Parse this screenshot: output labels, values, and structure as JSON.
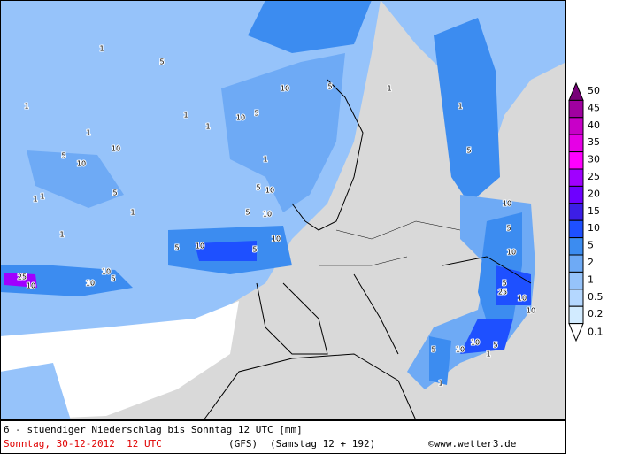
{
  "legend": {
    "levels": [
      {
        "value": 50,
        "color": "#780078"
      },
      {
        "value": 45,
        "color": "#a000a0"
      },
      {
        "value": 40,
        "color": "#c800c8"
      },
      {
        "value": 35,
        "color": "#e600e6"
      },
      {
        "value": 30,
        "color": "#ff00ff"
      },
      {
        "value": 25,
        "color": "#a000ff"
      },
      {
        "value": 20,
        "color": "#6e00ff"
      },
      {
        "value": 15,
        "color": "#3c1ee6"
      },
      {
        "value": 10,
        "color": "#1e50ff"
      },
      {
        "value": 5,
        "color": "#3c8cf0"
      },
      {
        "value": 2,
        "color": "#6eaaf5"
      },
      {
        "value": 1,
        "color": "#96c3fa"
      },
      {
        "value": 0.5,
        "color": "#b4d7ff"
      },
      {
        "value": 0.2,
        "color": "#d2ebff"
      },
      {
        "value": 0.1,
        "color": "#ffffff"
      }
    ]
  },
  "map_labels": [
    1,
    1,
    5,
    1,
    1,
    10,
    5,
    1,
    1,
    10,
    10,
    5,
    1,
    5,
    10,
    1,
    5,
    10,
    5,
    1,
    1,
    5,
    10,
    5,
    1,
    10,
    5,
    10,
    25,
    10,
    10,
    10,
    5,
    1,
    1,
    10,
    5,
    10,
    5,
    10,
    25,
    10,
    5,
    10,
    10,
    5,
    1,
    5,
    1
  ],
  "footer": {
    "line1": "6 - stuendiger Niederschlag bis Sonntag 12 UTC [mm]",
    "date": "Sonntag, 30-12-2012  12 UTC",
    "model": "(GFS)",
    "run": "(Samstag 12 + 192)",
    "credit": "©www.wetter3.de"
  }
}
